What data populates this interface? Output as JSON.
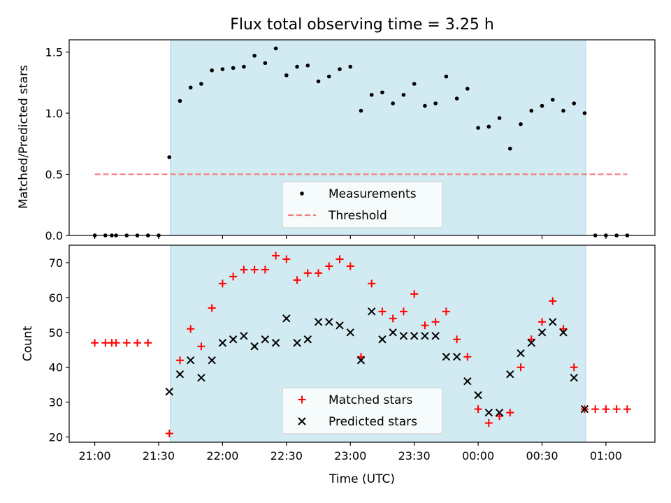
{
  "chart_data": {
    "title": "Flux total observing time = 3.25 h",
    "xlabel": "Time (UTC)",
    "x_ticks": [
      {
        "m": -180,
        "label": "21:00"
      },
      {
        "m": -150,
        "label": "21:30"
      },
      {
        "m": -120,
        "label": "22:00"
      },
      {
        "m": -90,
        "label": "22:30"
      },
      {
        "m": -60,
        "label": "23:00"
      },
      {
        "m": -30,
        "label": "23:30"
      },
      {
        "m": 0,
        "label": "00:00"
      },
      {
        "m": 30,
        "label": "00:30"
      },
      {
        "m": 60,
        "label": "01:00"
      }
    ],
    "xlim_minutes_from_midnight": [
      -192,
      83
    ],
    "observing_window_minutes_from_midnight": [
      -144.5,
      50.5
    ],
    "colors": {
      "shade": "#add8e6",
      "matched": "#ff0000",
      "predicted": "#000000",
      "threshold": "#f08080",
      "measurement": "#000000"
    },
    "charts": [
      {
        "type": "scatter",
        "ylabel": "Matched/Predicted stars",
        "ylim": [
          0,
          1.6
        ],
        "y_ticks": [
          {
            "v": 0.0,
            "label": "0.0"
          },
          {
            "v": 0.5,
            "label": "0.5"
          },
          {
            "v": 1.0,
            "label": "1.0"
          },
          {
            "v": 1.5,
            "label": "1.5"
          }
        ],
        "threshold": {
          "value": 0.5,
          "x_range": [
            -180,
            70
          ]
        },
        "legend": {
          "location": "bottom-center",
          "entries": [
            "Measurements",
            "Threshold"
          ]
        },
        "x_minutes": [
          -180,
          -175,
          -172,
          -170,
          -165,
          -160,
          -155,
          -150,
          -145,
          -140,
          -135,
          -130,
          -125,
          -120,
          -115,
          -110,
          -105,
          -100,
          -95,
          -90,
          -85,
          -80,
          -75,
          -70,
          -65,
          -60,
          -55,
          -50,
          -45,
          -40,
          -35,
          -30,
          -25,
          -20,
          -15,
          -10,
          -5,
          0,
          5,
          10,
          15,
          20,
          25,
          30,
          35,
          40,
          45,
          50,
          55,
          60,
          65,
          70
        ],
        "series": [
          {
            "name": "Measurements",
            "values": [
              0,
              0,
              0,
              0,
              0,
              0,
              0,
              0,
              0.64,
              1.1,
              1.21,
              1.24,
              1.35,
              1.36,
              1.37,
              1.38,
              1.47,
              1.41,
              1.53,
              1.31,
              1.38,
              1.39,
              1.26,
              1.3,
              1.36,
              1.38,
              1.02,
              1.15,
              1.17,
              1.08,
              1.15,
              1.24,
              1.06,
              1.08,
              1.3,
              1.12,
              1.2,
              0.88,
              0.89,
              0.96,
              0.71,
              0.91,
              1.02,
              1.06,
              1.11,
              1.02,
              1.08,
              1.0,
              0,
              0,
              0,
              0
            ]
          }
        ]
      },
      {
        "type": "scatter",
        "ylabel": "Count",
        "ylim": [
          18.5,
          75
        ],
        "y_ticks": [
          {
            "v": 20,
            "label": "20"
          },
          {
            "v": 30,
            "label": "30"
          },
          {
            "v": 40,
            "label": "40"
          },
          {
            "v": 50,
            "label": "50"
          },
          {
            "v": 60,
            "label": "60"
          },
          {
            "v": 70,
            "label": "70"
          }
        ],
        "legend": {
          "location": "bottom-center",
          "entries": [
            "Matched stars",
            "Predicted stars"
          ]
        },
        "series": [
          {
            "name": "Matched stars",
            "marker": "+",
            "x": [
              -180,
              -175,
              -172,
              -170,
              -165,
              -160,
              -155,
              -145,
              -140,
              -135,
              -130,
              -125,
              -120,
              -115,
              -110,
              -105,
              -100,
              -95,
              -90,
              -85,
              -80,
              -75,
              -70,
              -65,
              -60,
              -55,
              -50,
              -45,
              -40,
              -35,
              -30,
              -25,
              -20,
              -15,
              -10,
              -5,
              0,
              5,
              10,
              15,
              20,
              25,
              30,
              35,
              40,
              45,
              50,
              55,
              60,
              65,
              70
            ],
            "values": [
              47,
              47,
              47,
              47,
              47,
              47,
              47,
              21,
              42,
              51,
              46,
              57,
              64,
              66,
              68,
              68,
              68,
              72,
              71,
              65,
              67,
              67,
              69,
              71,
              69,
              43,
              64,
              56,
              54,
              56,
              61,
              52,
              53,
              56,
              48,
              43,
              28,
              24,
              26,
              27,
              40,
              48,
              53,
              59,
              51,
              40,
              28,
              28,
              28,
              28,
              28
            ]
          },
          {
            "name": "Predicted stars",
            "marker": "x",
            "x": [
              -145,
              -140,
              -135,
              -130,
              -125,
              -120,
              -115,
              -110,
              -105,
              -100,
              -95,
              -90,
              -85,
              -80,
              -75,
              -70,
              -65,
              -60,
              -55,
              -50,
              -45,
              -40,
              -35,
              -30,
              -25,
              -20,
              -15,
              -10,
              -5,
              0,
              5,
              10,
              15,
              20,
              25,
              30,
              35,
              40,
              45,
              50
            ],
            "values": [
              33,
              38,
              42,
              37,
              42,
              47,
              48,
              49,
              46,
              48,
              47,
              54,
              47,
              48,
              53,
              53,
              52,
              50,
              42,
              56,
              48,
              50,
              49,
              49,
              49,
              49,
              43,
              43,
              36,
              32,
              27,
              27,
              38,
              44,
              47,
              50,
              53,
              50,
              37,
              28
            ]
          }
        ]
      }
    ]
  }
}
